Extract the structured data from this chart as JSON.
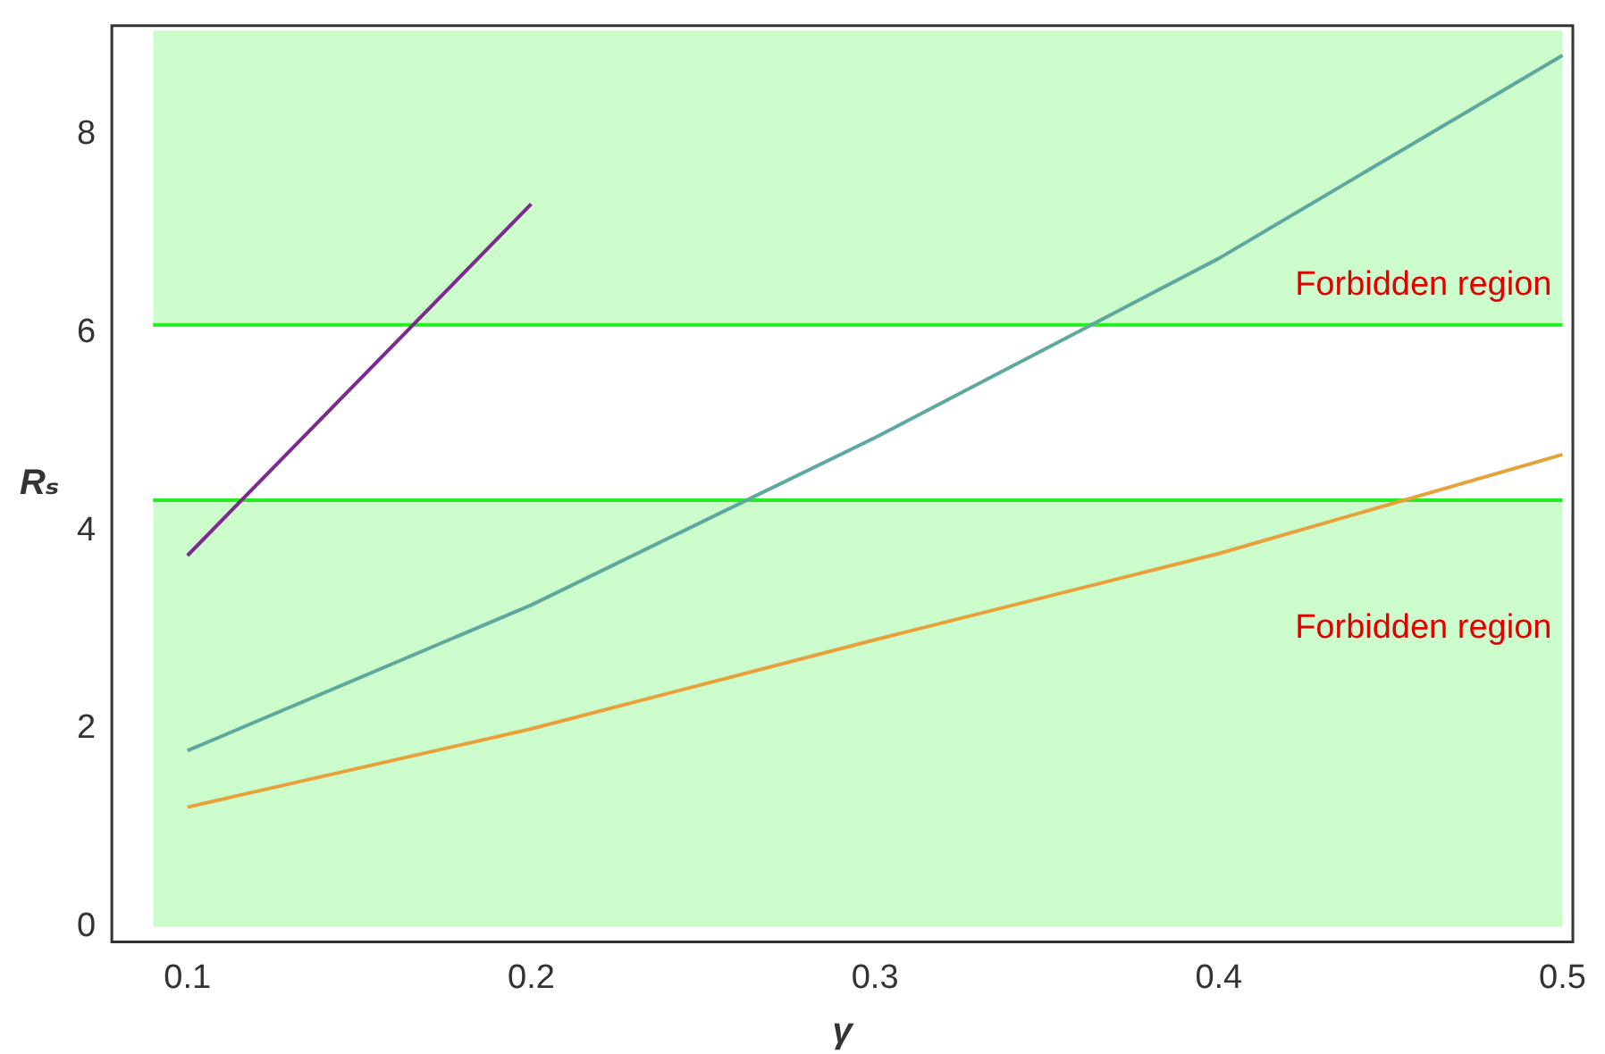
{
  "chart_data": {
    "type": "line",
    "xlabel": "γ",
    "ylabel": "Rₛ",
    "xlim": [
      0.078,
      0.503
    ],
    "ylim": [
      -0.15,
      9.1
    ],
    "xticks": [
      0.1,
      0.2,
      0.3,
      0.4,
      0.5
    ],
    "yticks": [
      0,
      2,
      4,
      6,
      8
    ],
    "grid": false,
    "legend": false,
    "marker": "none",
    "series": [
      {
        "color": "#7b2a8e",
        "x": [
          0.1,
          0.2
        ],
        "values": [
          3.75,
          7.3
        ]
      },
      {
        "color": "#5fa89e",
        "x": [
          0.1,
          0.2,
          0.3,
          0.4,
          0.5
        ],
        "values": [
          1.78,
          3.25,
          4.94,
          6.75,
          8.8
        ]
      },
      {
        "color": "#e8a03a",
        "x": [
          0.1,
          0.2,
          0.3,
          0.4,
          0.5
        ],
        "values": [
          1.21,
          2.0,
          2.9,
          3.77,
          4.77
        ]
      }
    ],
    "bands": [
      {
        "axis": "y",
        "from": 0,
        "to": 4.31,
        "color": "#ccfccc"
      },
      {
        "axis": "y",
        "from": 6.08,
        "to": 9.05,
        "color": "#ccfccc"
      }
    ],
    "ref_lines": [
      {
        "axis": "y",
        "value": 4.31,
        "color": "#22ee22"
      },
      {
        "axis": "y",
        "value": 6.08,
        "color": "#22ee22"
      }
    ],
    "annotations": [
      "Forbidden region",
      "Forbidden region"
    ]
  }
}
